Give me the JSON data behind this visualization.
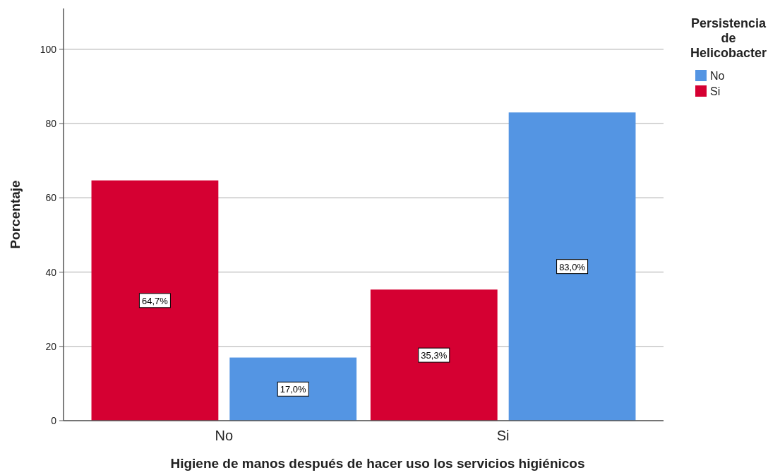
{
  "chart_data": {
    "type": "bar",
    "xlabel": "Higiene de manos después de hacer uso los servicios higiénicos",
    "ylabel": "Porcentaje",
    "legend_title": "Persistencia de Helicobacter",
    "categories": [
      "No",
      "Si"
    ],
    "series": [
      {
        "name": "Si",
        "color": "#d50032",
        "values": [
          64.7,
          35.3
        ],
        "value_labels": [
          "64,7%",
          "35,3%"
        ]
      },
      {
        "name": "No",
        "color": "#5495e3",
        "values": [
          17.0,
          83.0
        ],
        "value_labels": [
          "17,0%",
          "83,0%"
        ]
      }
    ],
    "ylim": [
      0,
      111
    ],
    "yticks": [
      0,
      20,
      40,
      60,
      80,
      100
    ],
    "grid": "y",
    "legend": "top right"
  }
}
